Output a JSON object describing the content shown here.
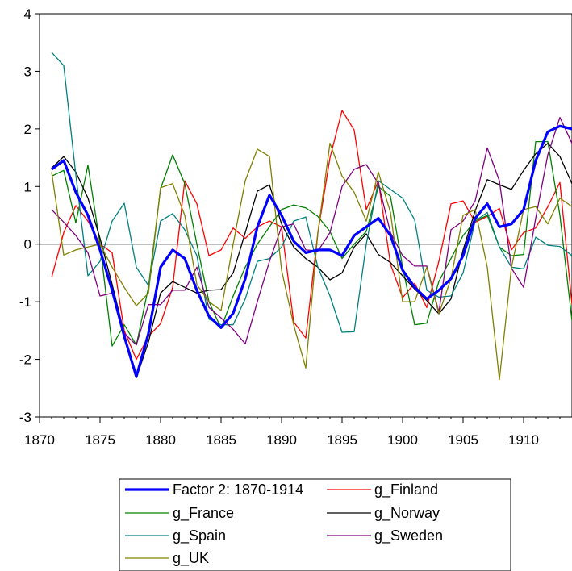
{
  "chart_data": {
    "type": "line",
    "title": "",
    "xlabel": "",
    "ylabel": "",
    "xlim": [
      1870,
      1914
    ],
    "ylim": [
      -3,
      4
    ],
    "x_ticks": [
      1870,
      1875,
      1880,
      1885,
      1890,
      1895,
      1900,
      1905,
      1910
    ],
    "y_ticks": [
      4,
      3,
      2,
      1,
      0,
      -1,
      -2,
      -3
    ],
    "zero_line": true,
    "grid": false,
    "legend_position": "bottom",
    "x": [
      1871,
      1872,
      1873,
      1874,
      1875,
      1876,
      1877,
      1878,
      1879,
      1880,
      1881,
      1882,
      1883,
      1884,
      1885,
      1886,
      1887,
      1888,
      1889,
      1890,
      1891,
      1892,
      1893,
      1894,
      1895,
      1896,
      1897,
      1898,
      1899,
      1900,
      1901,
      1902,
      1903,
      1904,
      1905,
      1906,
      1907,
      1908,
      1909,
      1910,
      1911,
      1912,
      1913,
      1914
    ],
    "series": [
      {
        "name": "Factor 2: 1870-1914",
        "color": "#0000ff",
        "width": 3.2,
        "values": [
          1.3,
          1.45,
          0.9,
          0.5,
          -0.1,
          -0.8,
          -1.6,
          -2.3,
          -1.55,
          -0.4,
          -0.1,
          -0.25,
          -0.8,
          -1.25,
          -1.45,
          -1.2,
          -0.6,
          0.3,
          0.85,
          0.5,
          0.05,
          -0.15,
          -0.1,
          -0.1,
          -0.2,
          0.15,
          0.3,
          0.45,
          0.15,
          -0.45,
          -0.75,
          -0.95,
          -0.8,
          -0.6,
          -0.2,
          0.45,
          0.7,
          0.3,
          0.35,
          0.6,
          1.45,
          1.95,
          2.05,
          2.0
        ]
      },
      {
        "name": "g_Finland",
        "color": "#ff0000",
        "width": 1.3,
        "values": [
          -0.58,
          0.2,
          0.67,
          0.4,
          0.0,
          -0.15,
          -1.5,
          -2.0,
          -1.6,
          -1.38,
          -0.75,
          1.1,
          0.7,
          -0.2,
          -0.1,
          0.28,
          0.1,
          0.3,
          0.4,
          0.3,
          -1.35,
          -1.63,
          0.2,
          1.5,
          2.32,
          1.98,
          0.6,
          1.1,
          -0.35,
          -0.93,
          -0.68,
          -1.1,
          -0.3,
          0.7,
          0.75,
          0.38,
          0.48,
          0.62,
          -0.1,
          0.2,
          0.28,
          0.65,
          1.07,
          -1.05
        ]
      },
      {
        "name": "g_France",
        "color": "#008000",
        "width": 1.3,
        "values": [
          1.18,
          1.28,
          0.37,
          1.37,
          0.0,
          -1.77,
          -1.4,
          -1.75,
          -0.75,
          0.96,
          1.55,
          1.05,
          0.0,
          -1.0,
          -1.46,
          -0.9,
          -0.4,
          0.0,
          0.3,
          0.6,
          0.68,
          0.63,
          0.48,
          0.22,
          -0.25,
          0.0,
          0.22,
          1.0,
          0.83,
          -0.4,
          -1.4,
          -1.37,
          -0.65,
          -0.25,
          0.15,
          0.4,
          0.5,
          -0.05,
          -0.2,
          -0.18,
          1.78,
          1.78,
          0.5,
          -1.33
        ]
      },
      {
        "name": "g_Norway",
        "color": "#000000",
        "width": 1.3,
        "values": [
          1.32,
          1.52,
          1.25,
          0.8,
          0.1,
          -0.7,
          -1.55,
          -2.32,
          -1.7,
          -0.85,
          -0.65,
          -0.75,
          -0.85,
          -0.8,
          -0.79,
          -0.5,
          0.2,
          0.92,
          1.03,
          0.35,
          -0.05,
          -0.25,
          -0.4,
          -0.62,
          -0.5,
          -0.05,
          0.18,
          -0.18,
          -0.32,
          -0.55,
          -0.78,
          -0.98,
          -1.21,
          -0.95,
          -0.1,
          0.58,
          1.12,
          1.03,
          0.95,
          1.28,
          1.57,
          1.75,
          1.52,
          1.05
        ]
      },
      {
        "name": "g_Spain",
        "color": "#008080",
        "width": 1.3,
        "values": [
          3.33,
          3.1,
          1.2,
          -0.55,
          -0.3,
          0.4,
          0.71,
          -0.4,
          -0.72,
          0.4,
          0.53,
          0.25,
          -0.2,
          -1.3,
          -1.4,
          -1.4,
          -0.95,
          -0.3,
          -0.25,
          -0.05,
          0.4,
          0.47,
          -0.4,
          -0.9,
          -1.53,
          -1.52,
          0.0,
          1.1,
          0.95,
          0.8,
          0.42,
          -0.8,
          -0.92,
          -0.9,
          -0.5,
          0.4,
          0.55,
          -0.05,
          -0.4,
          -0.43,
          0.12,
          -0.02,
          -0.04,
          -0.2
        ]
      },
      {
        "name": "g_Sweden",
        "color": "#800080",
        "width": 1.3,
        "values": [
          0.6,
          0.38,
          0.15,
          -0.15,
          -0.9,
          -0.85,
          -1.55,
          -1.75,
          -1.05,
          -1.05,
          -0.8,
          -0.8,
          -0.4,
          -1.1,
          -1.28,
          -1.48,
          -1.73,
          -1.0,
          -0.3,
          0.3,
          0.35,
          -0.1,
          -0.12,
          0.2,
          1.0,
          1.3,
          1.38,
          1.05,
          0.2,
          -0.2,
          -0.38,
          -0.38,
          -1.18,
          0.25,
          0.4,
          0.75,
          1.67,
          1.1,
          -0.42,
          -0.75,
          0.45,
          1.55,
          2.2,
          1.75
        ]
      },
      {
        "name": "g_UK",
        "color": "#808000",
        "width": 1.3,
        "values": [
          1.25,
          -0.19,
          -0.1,
          -0.05,
          0.0,
          -0.4,
          -0.75,
          -1.07,
          -0.85,
          0.98,
          1.05,
          0.5,
          -0.7,
          -1.0,
          -1.15,
          0.0,
          1.1,
          1.65,
          1.52,
          -0.45,
          -1.4,
          -2.15,
          0.2,
          1.75,
          1.18,
          0.9,
          0.4,
          1.25,
          0.55,
          -1.0,
          -1.0,
          -0.4,
          -1.21,
          -0.6,
          0.5,
          0.6,
          -0.4,
          -2.35,
          -0.4,
          0.6,
          0.65,
          0.35,
          0.8,
          0.65
        ]
      }
    ]
  }
}
